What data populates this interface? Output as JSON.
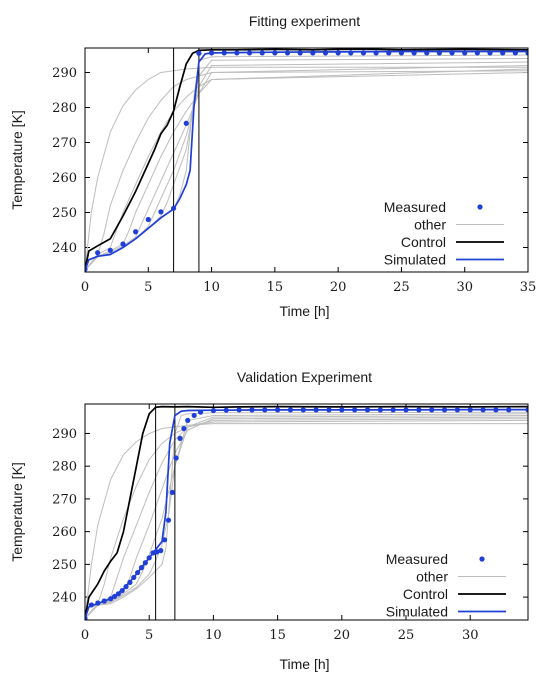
{
  "chart_data": [
    {
      "type": "line",
      "title": "Fitting experiment",
      "xlabel": "Time [h]",
      "ylabel": "Temperature [K]",
      "xlim": [
        0,
        35
      ],
      "ylim": [
        233,
        297
      ],
      "xticks": [
        0,
        5,
        10,
        15,
        20,
        25,
        30,
        35
      ],
      "yticks": [
        240,
        250,
        260,
        270,
        280,
        290
      ],
      "grid": false,
      "legend_position": "bottom-right",
      "legend": [
        "Measured",
        "other",
        "Control",
        "Simulated"
      ],
      "vlines": [
        7,
        9
      ],
      "colors": {
        "measured": "#1f3fd6",
        "other": "#bdbdbd",
        "control": "#000000",
        "simulated": "#1f3fd6"
      },
      "series": [
        {
          "name": "Measured",
          "kind": "points",
          "x": [
            0,
            1,
            2,
            3,
            4,
            5,
            6,
            7,
            8,
            9,
            10,
            11,
            12,
            13,
            14,
            15,
            16,
            17,
            18,
            19,
            20,
            21,
            22,
            23,
            24,
            25,
            26,
            27,
            28,
            29,
            30,
            31,
            32,
            33,
            34,
            35
          ],
          "y": [
            233.8,
            238.5,
            239.2,
            241,
            244.5,
            248,
            250.2,
            251.2,
            275.5,
            295.5,
            295.6,
            295.6,
            295.6,
            295.6,
            295.6,
            295.6,
            295.6,
            295.6,
            295.6,
            295.6,
            295.6,
            295.6,
            295.6,
            295.6,
            295.6,
            295.6,
            295.6,
            295.6,
            295.6,
            295.6,
            295.6,
            295.6,
            295.6,
            295.6,
            295.6,
            295.6
          ]
        },
        {
          "name": "Control",
          "kind": "line",
          "x": [
            0,
            0.3,
            1,
            2,
            3,
            4,
            5,
            5.5,
            6,
            6.5,
            7,
            7.5,
            8,
            8.5,
            9,
            10,
            12,
            15,
            18,
            20,
            22,
            25,
            30,
            35
          ],
          "y": [
            233.5,
            239,
            240.5,
            242.5,
            249,
            256,
            264,
            268,
            272.5,
            275,
            279,
            286,
            292.5,
            295.5,
            296.3,
            296.5,
            296.5,
            296.6,
            296.5,
            296.6,
            296.7,
            296.5,
            296.6,
            296.5
          ]
        },
        {
          "name": "Simulated",
          "kind": "line",
          "x": [
            0,
            0.3,
            1,
            2,
            3,
            4,
            5,
            6,
            7,
            7.5,
            8,
            8.3,
            8.6,
            9,
            9.5,
            10,
            12,
            15,
            20,
            25,
            30,
            35
          ],
          "y": [
            233.5,
            236.5,
            237.5,
            238,
            240,
            242.5,
            245.5,
            248.5,
            251,
            254,
            258,
            262,
            280,
            293,
            295.3,
            295.6,
            295.7,
            295.8,
            295.9,
            296,
            296,
            296
          ]
        },
        {
          "name": "other",
          "kind": "family",
          "curves": [
            {
              "x": [
                0,
                0.5,
                1,
                2,
                3,
                4,
                5,
                6,
                8,
                10,
                35
              ],
              "y": [
                233.5,
                250,
                260,
                273,
                280.5,
                285,
                288,
                290,
                291,
                291.5,
                291.5
              ]
            },
            {
              "x": [
                0,
                1,
                1.5,
                2,
                3,
                4,
                5,
                6,
                7,
                8,
                10,
                35
              ],
              "y": [
                233.5,
                238,
                244,
                252,
                262,
                270,
                277,
                282,
                286,
                288,
                290,
                290.5
              ]
            },
            {
              "x": [
                0,
                1,
                2,
                2.5,
                3,
                4,
                5,
                6,
                7,
                8,
                9,
                10,
                35
              ],
              "y": [
                233.5,
                238,
                240,
                245,
                250,
                258,
                266,
                273,
                279,
                283,
                286,
                288,
                290
              ]
            },
            {
              "x": [
                0,
                1,
                2,
                3,
                3.5,
                4,
                5,
                6,
                7,
                8,
                9,
                10,
                35
              ],
              "y": [
                233.5,
                237.5,
                239,
                241,
                245,
                250,
                258,
                266,
                273,
                279,
                284,
                288,
                291
              ]
            },
            {
              "x": [
                0,
                1,
                2,
                3,
                4,
                4.5,
                5,
                6,
                7,
                8,
                9,
                10,
                35
              ],
              "y": [
                233.5,
                237.5,
                238.5,
                240.5,
                243,
                247,
                251,
                259,
                267,
                275,
                284,
                290,
                292
              ]
            },
            {
              "x": [
                0,
                1,
                2,
                3,
                4,
                5,
                5.5,
                6,
                7,
                8,
                9,
                10,
                35
              ],
              "y": [
                233.5,
                237.5,
                238,
                240,
                242.5,
                246,
                250,
                254,
                262,
                272,
                286,
                292,
                293
              ]
            },
            {
              "x": [
                0,
                1,
                2,
                3,
                4,
                5,
                6,
                6.5,
                7,
                8,
                9,
                10,
                35
              ],
              "y": [
                233.5,
                237.5,
                238,
                240,
                242.5,
                245.5,
                249,
                253,
                258,
                268,
                289,
                293.5,
                294
              ]
            },
            {
              "x": [
                0,
                1,
                2,
                3,
                4,
                5,
                6,
                7,
                7.5,
                8,
                8.5,
                9,
                10,
                35
              ],
              "y": [
                233.5,
                237.5,
                238,
                240,
                242.5,
                245.5,
                248.5,
                251,
                255,
                262,
                280,
                293.5,
                294.5,
                295
              ]
            }
          ]
        }
      ]
    },
    {
      "type": "line",
      "title": "Validation Experiment",
      "xlabel": "Time [h]",
      "ylabel": "Temperature [K]",
      "xlim": [
        0,
        34.5
      ],
      "ylim": [
        233,
        299
      ],
      "xticks": [
        0,
        5,
        10,
        15,
        20,
        25,
        30
      ],
      "yticks": [
        240,
        250,
        260,
        270,
        280,
        290
      ],
      "grid": false,
      "legend_position": "bottom-right",
      "legend": [
        "Measured",
        "other",
        "Control",
        "Simulated"
      ],
      "vlines": [
        5.5,
        7
      ],
      "colors": {
        "measured": "#1f3fd6",
        "other": "#bdbdbd",
        "control": "#000000",
        "simulated": "#1f3fd6"
      },
      "series": [
        {
          "name": "Measured",
          "kind": "points",
          "x": [
            0,
            0.5,
            1,
            1.5,
            2,
            2.3,
            2.6,
            2.9,
            3.2,
            3.5,
            3.8,
            4.1,
            4.4,
            4.7,
            5.0,
            5.3,
            5.6,
            5.9,
            6.2,
            6.5,
            6.8,
            7.1,
            7.4,
            7.7,
            8.0,
            8.5,
            9,
            10,
            11,
            12,
            13,
            14,
            15,
            16,
            17,
            18,
            19,
            20,
            21,
            22,
            23,
            24,
            25,
            26,
            27,
            28,
            29,
            30,
            31,
            32,
            33,
            34.5
          ],
          "y": [
            233.5,
            237.6,
            238.2,
            238.8,
            239.5,
            240.2,
            241,
            242,
            243.2,
            244.5,
            246,
            247.5,
            249,
            250.5,
            252,
            253.5,
            253.8,
            254.2,
            257.5,
            263.5,
            272,
            282.5,
            288.5,
            291.5,
            294,
            295.5,
            296.5,
            297,
            297.1,
            297.2,
            297.2,
            297.2,
            297.2,
            297.2,
            297.2,
            297.2,
            297.2,
            297.2,
            297.2,
            297.2,
            297.2,
            297.2,
            297.2,
            297.2,
            297.2,
            297.2,
            297.2,
            297.2,
            297.2,
            297.2,
            297.2,
            297.2
          ]
        },
        {
          "name": "Control",
          "kind": "line",
          "x": [
            0,
            0.3,
            1,
            1.5,
            2,
            2.5,
            3,
            3.5,
            4,
            4.5,
            5,
            5.5,
            6,
            7,
            8,
            10,
            12,
            15,
            20,
            25,
            30,
            34.5
          ],
          "y": [
            233.5,
            240,
            244,
            248,
            251,
            253.5,
            260,
            270,
            280,
            290,
            296,
            298,
            298.2,
            298.1,
            298.2,
            298,
            298.1,
            298.2,
            298.1,
            298.2,
            298.1,
            298.2
          ]
        },
        {
          "name": "Simulated",
          "kind": "line",
          "x": [
            0,
            0.3,
            1,
            2,
            3,
            4,
            5,
            6,
            6.3,
            6.6,
            7,
            7.5,
            8,
            10,
            15,
            20,
            25,
            30,
            34.5
          ],
          "y": [
            233.5,
            237,
            238,
            239.5,
            242.5,
            247,
            252,
            257,
            266,
            287,
            295.5,
            296.8,
            297,
            297.1,
            297.2,
            297.2,
            297.2,
            297.3,
            297.3
          ]
        },
        {
          "name": "other",
          "kind": "family",
          "curves": [
            {
              "x": [
                0,
                0.5,
                1,
                2,
                3,
                4,
                5,
                6,
                8,
                10,
                34.5
              ],
              "y": [
                233.5,
                250,
                262,
                276,
                283.5,
                287.5,
                290,
                291.5,
                292.5,
                293,
                293
              ]
            },
            {
              "x": [
                0,
                1,
                1.5,
                2,
                3,
                4,
                5,
                6,
                7,
                8,
                10,
                34.5
              ],
              "y": [
                233.5,
                238,
                244,
                252,
                264,
                274,
                282,
                287,
                290,
                292,
                293.5,
                294
              ]
            },
            {
              "x": [
                0,
                1,
                2,
                2.5,
                3,
                4,
                5,
                6,
                7,
                8,
                10,
                34.5
              ],
              "y": [
                233.5,
                238,
                240,
                246,
                252,
                262,
                272,
                281,
                288,
                292,
                294,
                294.5
              ]
            },
            {
              "x": [
                0,
                1,
                2,
                3,
                3.5,
                4,
                5,
                6,
                7,
                8,
                10,
                34.5
              ],
              "y": [
                233.5,
                237.5,
                239,
                241.5,
                246,
                252,
                262,
                273,
                284,
                291,
                294.5,
                295
              ]
            },
            {
              "x": [
                0,
                1,
                2,
                3,
                4,
                4.5,
                5,
                6,
                7,
                8,
                10,
                34.5
              ],
              "y": [
                233.5,
                237.5,
                238.5,
                241,
                244,
                248,
                253,
                264,
                280,
                292,
                295,
                295.5
              ]
            },
            {
              "x": [
                0,
                1,
                2,
                3,
                4,
                5,
                5.5,
                6,
                6.5,
                7,
                8,
                10,
                34.5
              ],
              "y": [
                233.5,
                237.5,
                238.5,
                240.5,
                243,
                247,
                251,
                256,
                265,
                280,
                294,
                295.5,
                296
              ]
            },
            {
              "x": [
                0,
                1,
                2,
                3,
                4,
                5,
                6,
                6.3,
                6.6,
                7,
                7.5,
                8,
                10,
                34.5
              ],
              "y": [
                233.5,
                237.5,
                238,
                240,
                242.5,
                246,
                250,
                255,
                270,
                290,
                295.5,
                296,
                296.3,
                296.5
              ]
            }
          ]
        }
      ]
    }
  ]
}
